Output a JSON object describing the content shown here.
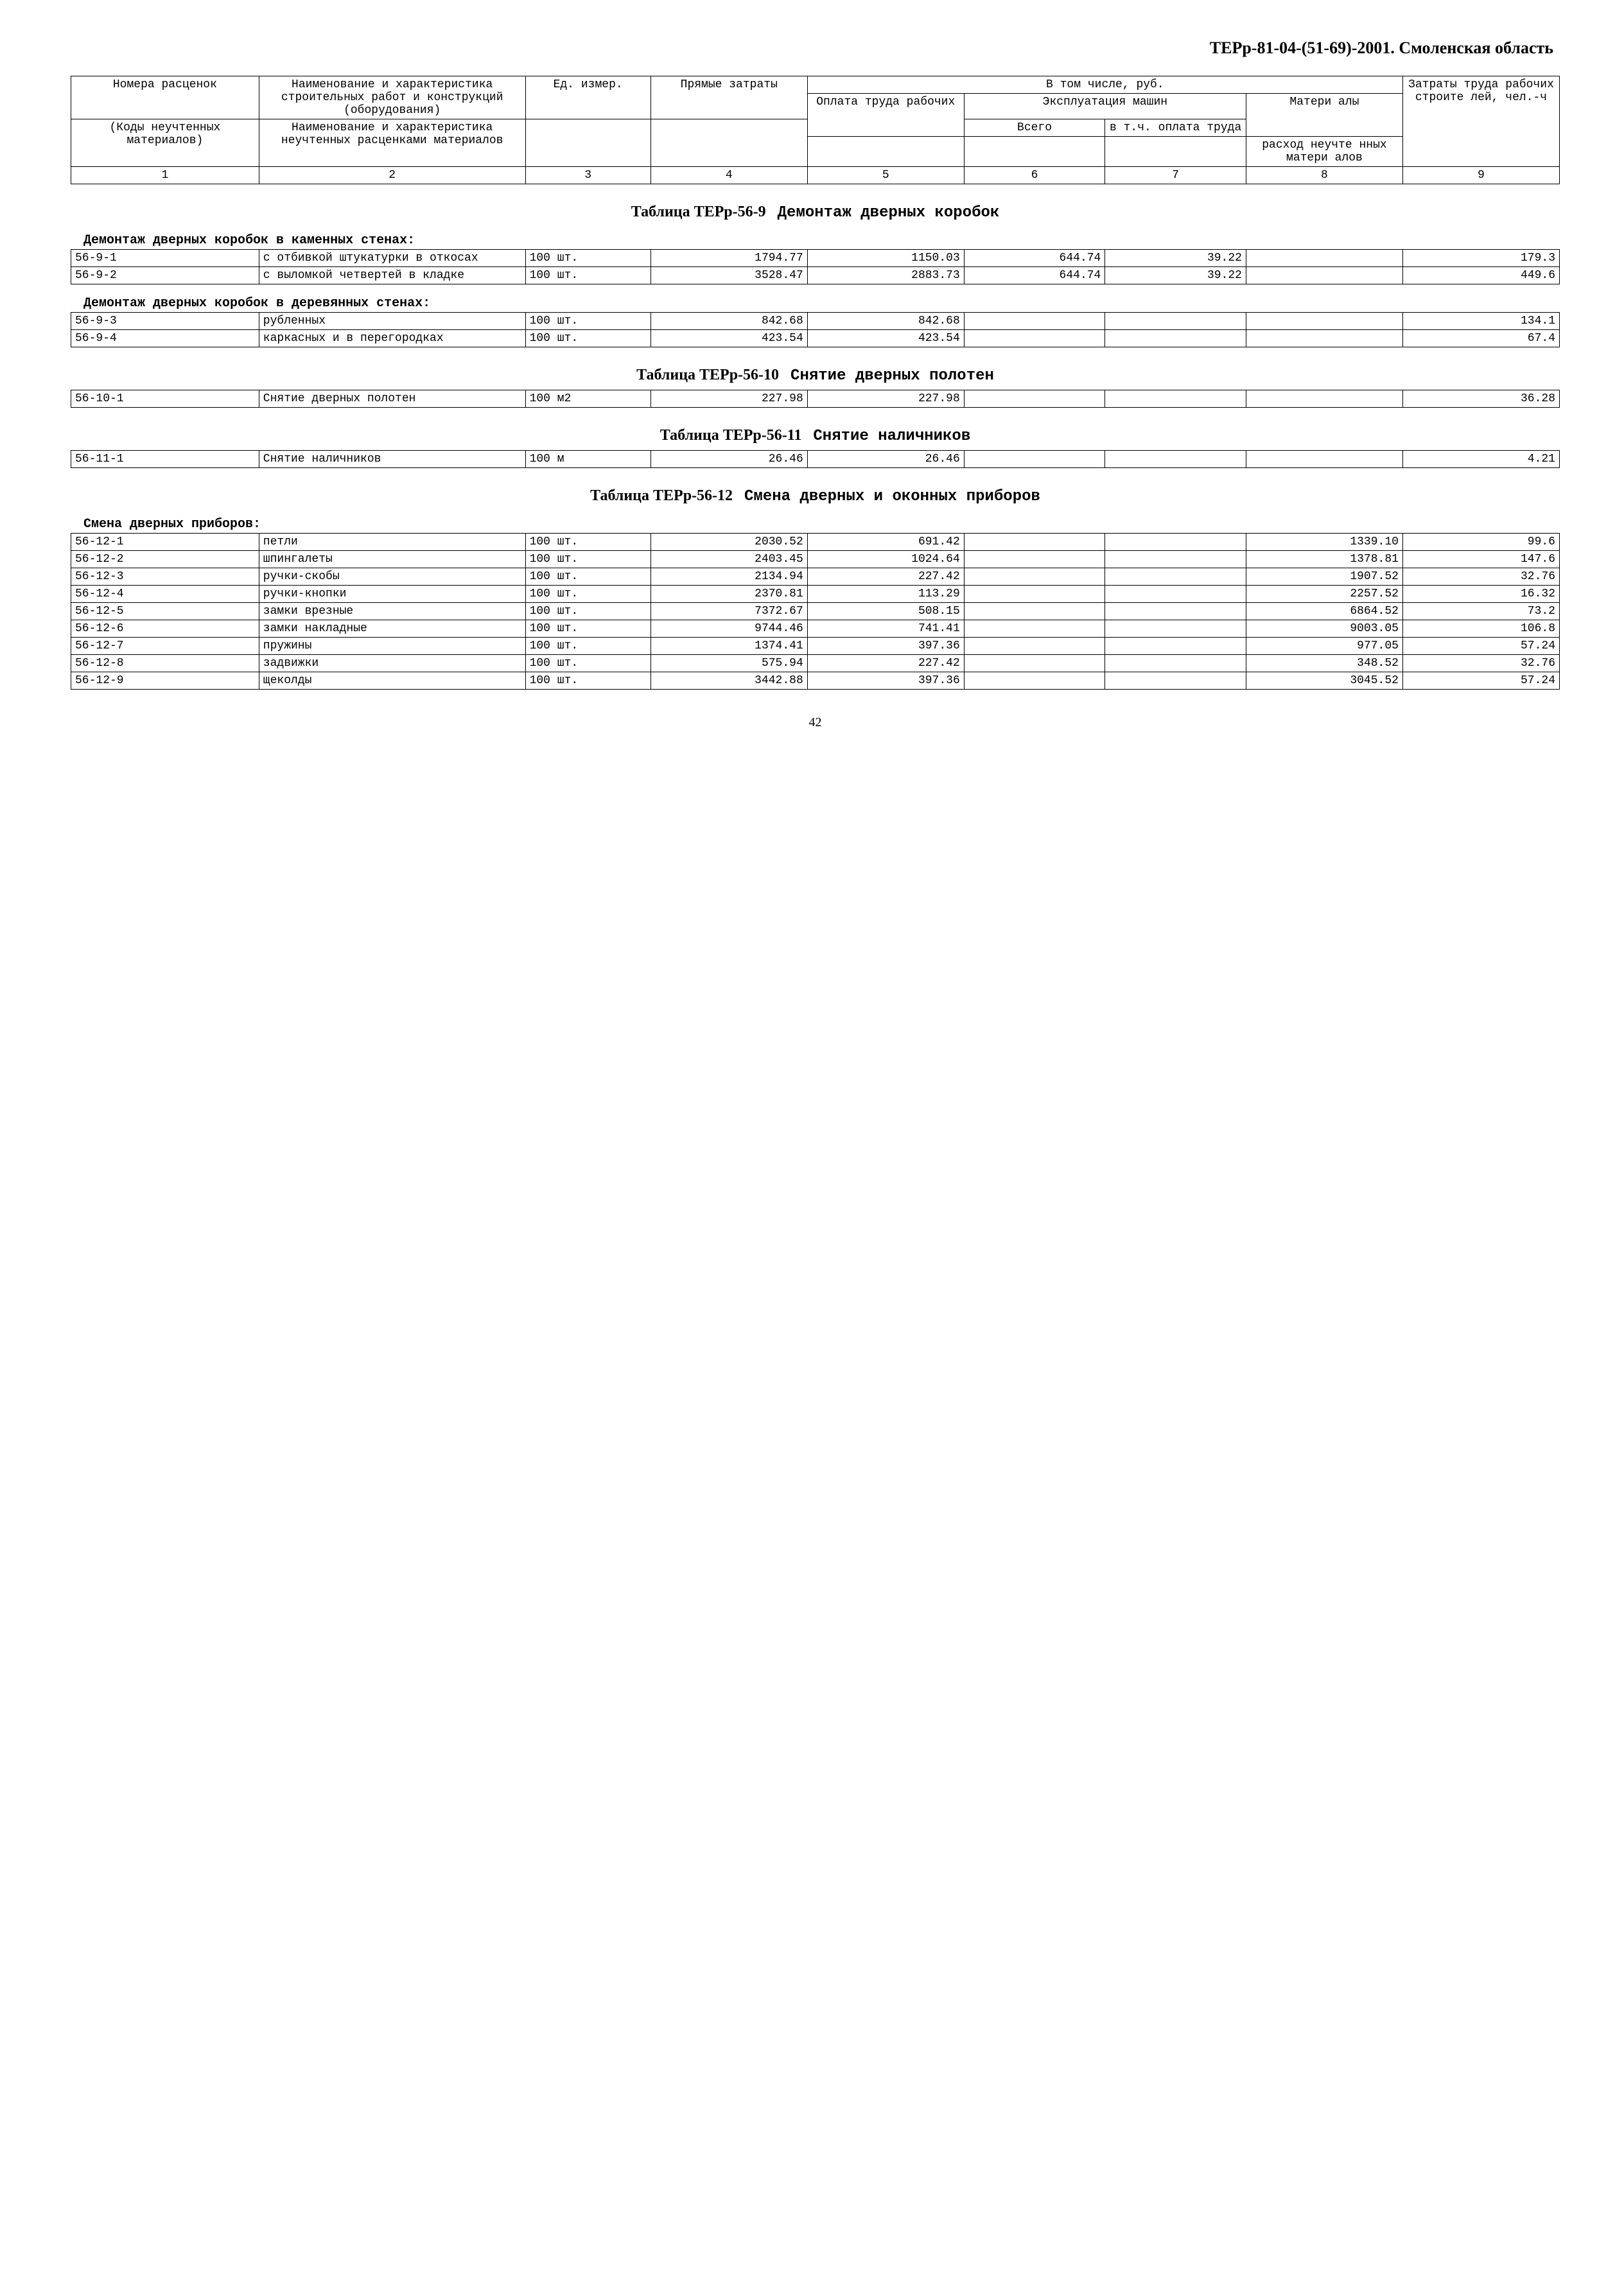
{
  "doc_title": "ТЕРр-81-04-(51-69)-2001. Смоленская область",
  "page_number": "42",
  "header_table": {
    "r1": {
      "c1": "Номера расценок",
      "c2": "Наименование и характеристика строительных работ и конструкций (оборудования)",
      "c3": "Ед. измер.",
      "c4": "Прямые затраты",
      "c5": "В том числе, руб.",
      "c9": "Затраты труда рабочих строите лей, чел.-ч"
    },
    "r2": {
      "c5": "Оплата труда рабочих",
      "c6": "Эксплуатация машин",
      "c8": "Матери алы"
    },
    "r3": {
      "c1": "(Коды неучтенных материалов)",
      "c2": "Наименование и характеристика неучтенных расценками материалов",
      "c6": "Всего",
      "c7": "в т.ч. оплата труда",
      "c8": "расход неучте нных матери алов"
    },
    "nums": [
      "1",
      "2",
      "3",
      "4",
      "5",
      "6",
      "7",
      "8",
      "9"
    ]
  },
  "t56_9": {
    "title_a": "Таблица ТЕРр-56-9",
    "title_b": "Демонтаж дверных коробок",
    "sub1": "Демонтаж дверных коробок в каменных стенах:",
    "rows1": [
      {
        "code": "56-9-1",
        "name": "с отбивкой штукатурки в откосах",
        "unit": "100 шт.",
        "c4": "1794.77",
        "c5": "1150.03",
        "c6": "644.74",
        "c7": "39.22",
        "c8": "",
        "c9": "179.3"
      },
      {
        "code": "56-9-2",
        "name": "с выломкой четвертей в кладке",
        "unit": "100 шт.",
        "c4": "3528.47",
        "c5": "2883.73",
        "c6": "644.74",
        "c7": "39.22",
        "c8": "",
        "c9": "449.6"
      }
    ],
    "sub2": "Демонтаж дверных коробок в деревянных стенах:",
    "rows2": [
      {
        "code": "56-9-3",
        "name": "рубленных",
        "unit": "100 шт.",
        "c4": "842.68",
        "c5": "842.68",
        "c6": "",
        "c7": "",
        "c8": "",
        "c9": "134.1"
      },
      {
        "code": "56-9-4",
        "name": "каркасных и в перегородках",
        "unit": "100 шт.",
        "c4": "423.54",
        "c5": "423.54",
        "c6": "",
        "c7": "",
        "c8": "",
        "c9": "67.4"
      }
    ]
  },
  "t56_10": {
    "title_a": "Таблица ТЕРр-56-10",
    "title_b": "Снятие дверных полотен",
    "rows": [
      {
        "code": "56-10-1",
        "name": "Снятие дверных полотен",
        "unit": "100 м2",
        "c4": "227.98",
        "c5": "227.98",
        "c6": "",
        "c7": "",
        "c8": "",
        "c9": "36.28"
      }
    ]
  },
  "t56_11": {
    "title_a": "Таблица ТЕРр-56-11",
    "title_b": "Снятие наличников",
    "rows": [
      {
        "code": "56-11-1",
        "name": "Снятие наличников",
        "unit": "100 м",
        "c4": "26.46",
        "c5": "26.46",
        "c6": "",
        "c7": "",
        "c8": "",
        "c9": "4.21"
      }
    ]
  },
  "t56_12": {
    "title_a": "Таблица ТЕРр-56-12",
    "title_b": "Смена дверных и оконных приборов",
    "sub1": "Смена дверных приборов:",
    "rows": [
      {
        "code": "56-12-1",
        "name": "петли",
        "unit": "100 шт.",
        "c4": "2030.52",
        "c5": "691.42",
        "c6": "",
        "c7": "",
        "c8": "1339.10",
        "c9": "99.6"
      },
      {
        "code": "56-12-2",
        "name": "шпингалеты",
        "unit": "100 шт.",
        "c4": "2403.45",
        "c5": "1024.64",
        "c6": "",
        "c7": "",
        "c8": "1378.81",
        "c9": "147.6"
      },
      {
        "code": "56-12-3",
        "name": "ручки-скобы",
        "unit": "100 шт.",
        "c4": "2134.94",
        "c5": "227.42",
        "c6": "",
        "c7": "",
        "c8": "1907.52",
        "c9": "32.76"
      },
      {
        "code": "56-12-4",
        "name": "ручки-кнопки",
        "unit": "100 шт.",
        "c4": "2370.81",
        "c5": "113.29",
        "c6": "",
        "c7": "",
        "c8": "2257.52",
        "c9": "16.32"
      },
      {
        "code": "56-12-5",
        "name": "замки врезные",
        "unit": "100 шт.",
        "c4": "7372.67",
        "c5": "508.15",
        "c6": "",
        "c7": "",
        "c8": "6864.52",
        "c9": "73.2"
      },
      {
        "code": "56-12-6",
        "name": "замки накладные",
        "unit": "100 шт.",
        "c4": "9744.46",
        "c5": "741.41",
        "c6": "",
        "c7": "",
        "c8": "9003.05",
        "c9": "106.8"
      },
      {
        "code": "56-12-7",
        "name": "пружины",
        "unit": "100 шт.",
        "c4": "1374.41",
        "c5": "397.36",
        "c6": "",
        "c7": "",
        "c8": "977.05",
        "c9": "57.24"
      },
      {
        "code": "56-12-8",
        "name": "задвижки",
        "unit": "100 шт.",
        "c4": "575.94",
        "c5": "227.42",
        "c6": "",
        "c7": "",
        "c8": "348.52",
        "c9": "32.76"
      },
      {
        "code": "56-12-9",
        "name": "щеколды",
        "unit": "100 шт.",
        "c4": "3442.88",
        "c5": "397.36",
        "c6": "",
        "c7": "",
        "c8": "3045.52",
        "c9": "57.24"
      }
    ]
  }
}
